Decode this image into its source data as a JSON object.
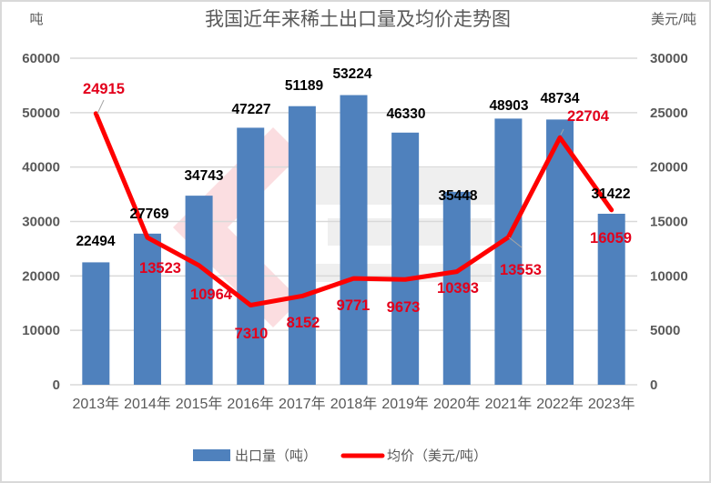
{
  "chart_data": {
    "type": "bar+line",
    "title": "我国近年来稀土出口量及均价走势图",
    "categories": [
      "2013年",
      "2014年",
      "2015年",
      "2016年",
      "2017年",
      "2018年",
      "2019年",
      "2020年",
      "2021年",
      "2022年",
      "2023年"
    ],
    "series": [
      {
        "name": "出口量（吨）",
        "type": "bar",
        "axis": "left",
        "color": "#4f81bd",
        "values": [
          22494,
          27769,
          34743,
          47227,
          51189,
          53224,
          46330,
          35448,
          48903,
          48734,
          31422
        ]
      },
      {
        "name": "均价（美元/吨）",
        "type": "line",
        "axis": "right",
        "color": "#ff0000",
        "values": [
          24915,
          13523,
          10964,
          7310,
          8152,
          9771,
          9673,
          10393,
          13553,
          22704,
          16059
        ]
      }
    ],
    "ylabel_left": "吨",
    "ylabel_right": "美元/吨",
    "ylim_left": [
      0,
      60000
    ],
    "ylim_right": [
      0,
      30000
    ],
    "yticks_left": [
      0,
      10000,
      20000,
      30000,
      40000,
      50000,
      60000
    ],
    "yticks_right": [
      0,
      5000,
      10000,
      15000,
      20000,
      25000,
      30000
    ],
    "grid": true,
    "legend_position": "bottom"
  },
  "header": {
    "title": "我国近年来稀土出口量及均价走势图",
    "left_unit": "吨",
    "right_unit": "美元/吨"
  },
  "legend": {
    "bar_label": "出口量（吨）",
    "line_label": "均价（美元/吨）"
  },
  "colors": {
    "bar": "#4f81bd",
    "line": "#ff0000",
    "line_label": "#e3001b",
    "grid": "#d9d9d9",
    "axis_text": "#595959"
  }
}
